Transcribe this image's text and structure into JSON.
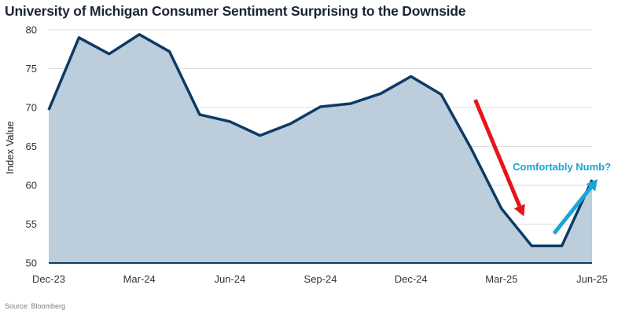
{
  "title": "University of Michigan Consumer Sentiment Surprising to the Downside",
  "source": "Source: Bloomberg",
  "colors": {
    "line": "#0d3a66",
    "fill": "#bccddb",
    "grid": "#dcdcdc",
    "down_arrow": "#e8141b",
    "up_arrow": "#1aa5d6",
    "annotation_text": "#1aa5d6"
  },
  "chart_data": {
    "type": "area",
    "title": "University of Michigan Consumer Sentiment Surprising to the Downside",
    "xlabel": "",
    "ylabel": "Index Value",
    "ylim": [
      50,
      80
    ],
    "yticks": [
      50,
      55,
      60,
      65,
      70,
      75,
      80
    ],
    "x": [
      "Dec-23",
      "Jan-24",
      "Feb-24",
      "Mar-24",
      "Apr-24",
      "May-24",
      "Jun-24",
      "Jul-24",
      "Aug-24",
      "Sep-24",
      "Oct-24",
      "Nov-24",
      "Dec-24",
      "Jan-25",
      "Feb-25",
      "Mar-25",
      "Apr-25",
      "May-25",
      "Jun-25"
    ],
    "xtick_labels": [
      "Dec-23",
      "Mar-24",
      "Jun-24",
      "Sep-24",
      "Dec-24",
      "Mar-25",
      "Jun-25"
    ],
    "series": [
      {
        "name": "Index Value",
        "values": [
          69.7,
          79.0,
          76.9,
          79.4,
          77.2,
          69.1,
          68.2,
          66.4,
          67.9,
          70.1,
          70.5,
          71.8,
          74.0,
          71.7,
          64.7,
          57.0,
          52.2,
          52.2,
          60.7
        ]
      }
    ],
    "annotations": [
      {
        "type": "arrow",
        "direction": "down",
        "color": "#e8141b",
        "from_x": "Feb-25",
        "from_y": 71.0,
        "to_x": "Apr-25",
        "to_y": 56.0
      },
      {
        "type": "arrow",
        "direction": "up",
        "color": "#1aa5d6",
        "from_x": "May-25",
        "from_y": 53.8,
        "to_x": "Jun-25",
        "to_y": 60.8
      },
      {
        "type": "text",
        "text": "Comfortably Numb?",
        "color": "#1aa5d6",
        "at_x": "May-25",
        "at_y": 62.4
      }
    ]
  }
}
